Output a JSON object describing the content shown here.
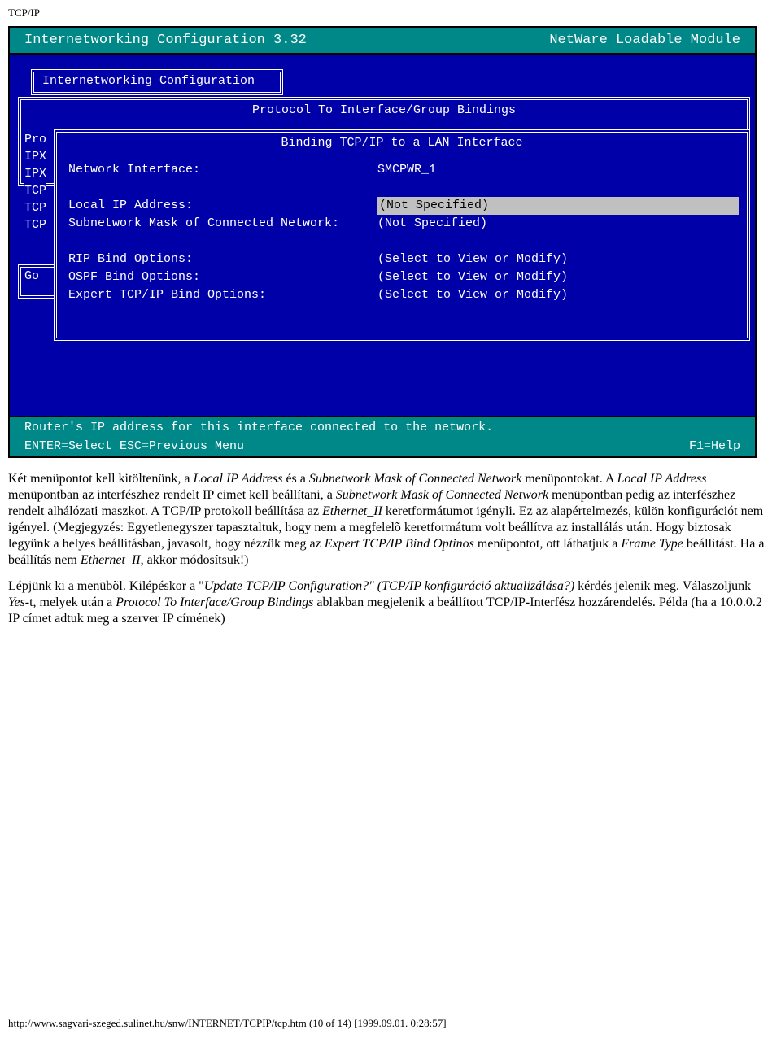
{
  "page": {
    "header": "TCP/IP",
    "footer": "http://www.sagvari-szeged.sulinet.hu/snw/INTERNET/TCPIP/tcp.htm (10 of 14) [1999.09.01. 0:28:57]"
  },
  "tui": {
    "colors": {
      "titlebar_bg": "#008888",
      "body_bg": "#0000a8",
      "text": "#ffffff",
      "highlight_bg": "#c0c0c0",
      "highlight_fg": "#000000",
      "border": "#000000"
    },
    "title_left": "Internetworking Configuration  3.32",
    "title_right": "NetWare Loadable Module",
    "box1_title": "Internetworking Configuration",
    "box2_title": "Protocol To Interface/Group Bindings",
    "box3_title": "Binding TCP/IP to a LAN Interface",
    "left_items": [
      "Pro",
      "IPX",
      "IPX",
      "TCP",
      "TCP",
      "TCP"
    ],
    "go_label": "Go",
    "form": {
      "rows": [
        {
          "label": "Network Interface:",
          "value": "SMCPWR_1",
          "hl": false
        },
        {
          "label": "",
          "value": "",
          "hl": false
        },
        {
          "label": "Local IP Address:",
          "value": "(Not Specified)",
          "hl": true
        },
        {
          "label": "Subnetwork Mask of Connected Network:",
          "value": "(Not Specified)",
          "hl": false
        },
        {
          "label": "",
          "value": "",
          "hl": false
        },
        {
          "label": "RIP Bind Options:",
          "value": "(Select to View or Modify)",
          "hl": false
        },
        {
          "label": "OSPF Bind Options:",
          "value": "(Select to View or Modify)",
          "hl": false
        },
        {
          "label": "Expert TCP/IP Bind Options:",
          "value": "(Select to View or Modify)",
          "hl": false
        }
      ]
    },
    "status": {
      "line1": "Router's IP address for this interface connected to the network.",
      "line2_left": "ENTER=Select ESC=Previous Menu",
      "line2_right": "F1=Help"
    }
  },
  "doc": {
    "p1a": "Két menüpontot kell kitöltenünk, a ",
    "p1i1": "Local IP Address",
    "p1b": " és a ",
    "p1i2": "Subnetwork Mask of Connected Network",
    "p1c": " menüpontokat. A ",
    "p1i3": "Local IP Address",
    "p1d": " menüpontban az interfészhez rendelt IP cimet kell beállítani, a ",
    "p1i4": "Subnetwork Mask of Connected Network",
    "p1e": " menüpontban pedig az interfészhez rendelt alhálózati maszkot. A TCP/IP protokoll beállítása az ",
    "p1i5": "Ethernet_II",
    "p1f": " keretformátumot igényli. Ez az alapértelmezés, külön konfigurációt nem igényel. (Megjegyzés: Egyetlenegyszer tapasztaltuk, hogy nem a megfelelõ keretformátum volt beállítva az installálás után. Hogy biztosak legyünk a helyes beállításban, javasolt, hogy nézzük meg az ",
    "p1i6": "Expert TCP/IP Bind Optinos",
    "p1g": " menüpontot, ott láthatjuk a ",
    "p1i7": "Frame Type",
    "p1h": " beállítást. Ha a beállítás nem ",
    "p1i8": "Ethernet_II",
    "p1j": ", akkor módosítsuk!)",
    "p2a": "Lépjünk ki a menübõl. Kilépéskor a \"",
    "p2i1": "Update TCP/IP Configuration?\" (TCP/IP konfiguráció aktualizálása?)",
    "p2b": " kérdés jelenik meg. Válaszoljunk ",
    "p2i2": "Yes",
    "p2c": "-t, melyek után a ",
    "p2i3": "Protocol To Interface/Group Bindings",
    "p2d": " ablakban megjelenik a beállított TCP/IP-Interfész hozzárendelés. Példa (ha a 10.0.0.2 IP címet adtuk meg a szerver IP címének)"
  }
}
